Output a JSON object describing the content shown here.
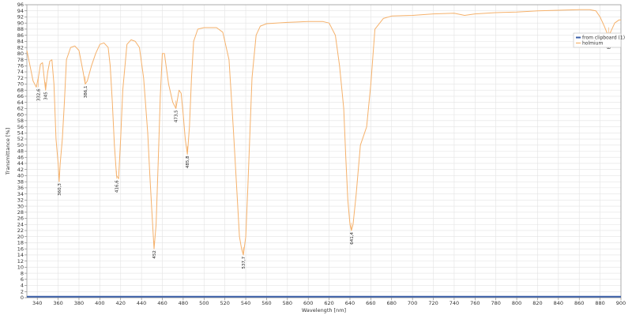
{
  "chart_data": {
    "type": "line",
    "xlabel": "Wavelength [nm]",
    "ylabel": "Transmittance [%]",
    "xlim": [
      330,
      900
    ],
    "ylim": [
      0,
      96
    ],
    "x_ticks": [
      340,
      360,
      380,
      400,
      420,
      440,
      460,
      480,
      500,
      520,
      540,
      560,
      580,
      600,
      620,
      640,
      660,
      680,
      700,
      720,
      740,
      760,
      780,
      800,
      820,
      840,
      860,
      880,
      900
    ],
    "y_ticks": [
      0,
      2,
      4,
      6,
      8,
      10,
      12,
      14,
      16,
      18,
      20,
      22,
      24,
      26,
      28,
      30,
      32,
      34,
      36,
      38,
      40,
      42,
      44,
      46,
      48,
      50,
      52,
      54,
      56,
      58,
      60,
      62,
      64,
      66,
      68,
      70,
      72,
      74,
      76,
      78,
      80,
      82,
      84,
      86,
      88,
      90,
      92,
      94,
      96
    ],
    "grid": true,
    "legend_position": "top-right",
    "series": [
      {
        "name": "from clipboard (1)",
        "color": "#3a5fa8",
        "x": [
          330,
          900
        ],
        "y": [
          0.3,
          0.3
        ]
      },
      {
        "name": "holmium",
        "color": "#f5b16b",
        "x": [
          330,
          333,
          336,
          339,
          341,
          343,
          345,
          346,
          348,
          350,
          352,
          354,
          356,
          358,
          360,
          361,
          362,
          364,
          366,
          368,
          372,
          376,
          380,
          384,
          386,
          388,
          392,
          396,
          400,
          404,
          408,
          410,
          412,
          414,
          416,
          418,
          420,
          422,
          426,
          430,
          434,
          438,
          442,
          446,
          448,
          450,
          452,
          454,
          456,
          458,
          460,
          462,
          466,
          470,
          473,
          474,
          476,
          478,
          480,
          482,
          484,
          486,
          488,
          490,
          494,
          500,
          506,
          512,
          518,
          524,
          528,
          532,
          534,
          536,
          537.7,
          540,
          542,
          546,
          550,
          554,
          560,
          580,
          600,
          614,
          620,
          626,
          630,
          634,
          636,
          638,
          640,
          641.4,
          643,
          646,
          650,
          654,
          656,
          660,
          664,
          672,
          680,
          700,
          720,
          740,
          750,
          760,
          780,
          800,
          810,
          820,
          840,
          860,
          870,
          876,
          880,
          884,
          887,
          888.2,
          890,
          894,
          898,
          900
        ],
        "y": [
          81,
          76,
          71,
          69,
          72,
          76.5,
          77,
          74,
          68,
          74,
          77.5,
          78,
          70,
          52,
          44,
          38,
          44,
          52,
          64,
          78,
          82,
          82.5,
          81,
          74,
          70,
          71,
          76,
          80,
          83,
          83.5,
          82,
          76,
          64,
          50,
          40,
          39,
          52,
          68,
          83,
          84.5,
          84,
          82,
          72,
          54,
          40,
          28,
          16,
          24,
          44,
          66,
          80,
          80,
          70,
          64,
          62,
          64,
          68,
          67,
          60,
          52,
          47,
          56,
          72,
          84,
          88,
          88.5,
          88.5,
          88.5,
          87,
          78,
          56,
          32,
          20,
          16,
          14,
          20,
          36,
          72,
          86,
          89,
          89.8,
          90.2,
          90.5,
          90.5,
          90,
          86,
          76,
          62,
          46,
          32,
          24,
          22,
          24,
          34,
          50,
          54,
          56,
          70,
          88,
          91.5,
          92.3,
          92.5,
          93,
          93.2,
          92.5,
          93,
          93.4,
          93.6,
          93.8,
          94,
          94.2,
          94.4,
          94.4,
          94,
          92,
          89,
          86.5,
          86,
          87,
          90,
          91,
          91
        ]
      }
    ],
    "peak_labels": [
      {
        "text": "332,6",
        "x": 341,
        "y": 69
      },
      {
        "text": "345",
        "x": 348,
        "y": 68
      },
      {
        "text": "360,3",
        "x": 361,
        "y": 38
      },
      {
        "text": "386,1",
        "x": 386,
        "y": 70
      },
      {
        "text": "416,6",
        "x": 416,
        "y": 39
      },
      {
        "text": "452",
        "x": 452,
        "y": 16
      },
      {
        "text": "473,5",
        "x": 473,
        "y": 62
      },
      {
        "text": "485,8",
        "x": 484,
        "y": 47
      },
      {
        "text": "537,7",
        "x": 537.7,
        "y": 14
      },
      {
        "text": "641,4",
        "x": 641.4,
        "y": 22
      },
      {
        "text": "888,2",
        "x": 888.2,
        "y": 86
      }
    ]
  }
}
